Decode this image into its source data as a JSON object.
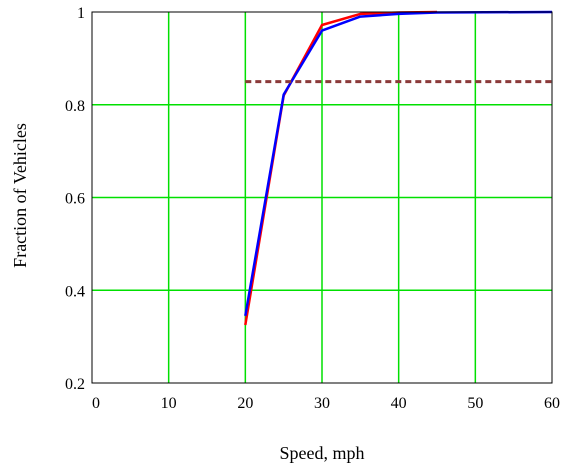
{
  "chart_data": {
    "type": "line",
    "title": "",
    "xlabel": "Speed, mph",
    "ylabel": "Fraction of Vehicles",
    "xlim": [
      0,
      60
    ],
    "ylim": [
      0.2,
      1.0
    ],
    "xticks": [
      0,
      10,
      20,
      30,
      40,
      50,
      60
    ],
    "yticks": [
      0.2,
      0.4,
      0.6,
      0.8,
      1.0
    ],
    "xtick_labels": [
      "0",
      "10",
      "20",
      "30",
      "40",
      "50",
      "60"
    ],
    "ytick_labels": [
      "0.2",
      "0.4",
      "0.6",
      "0.8",
      "1"
    ],
    "grid": true,
    "grid_color": "#00e000",
    "legend": "none",
    "series": [
      {
        "color": "#ff0000",
        "style": "solid",
        "x": [
          20,
          25,
          30,
          35,
          40,
          45
        ],
        "y": [
          0.325,
          0.82,
          0.972,
          0.996,
          0.999,
          1.0
        ]
      },
      {
        "color": "#0000ff",
        "style": "solid",
        "x": [
          20,
          25,
          30,
          35,
          40,
          45,
          60
        ],
        "y": [
          0.345,
          0.822,
          0.96,
          0.99,
          0.996,
          0.999,
          1.0
        ]
      },
      {
        "color": "#8b3a3a",
        "style": "dashed",
        "x": [
          20,
          60
        ],
        "y": [
          0.85,
          0.85
        ]
      }
    ]
  }
}
